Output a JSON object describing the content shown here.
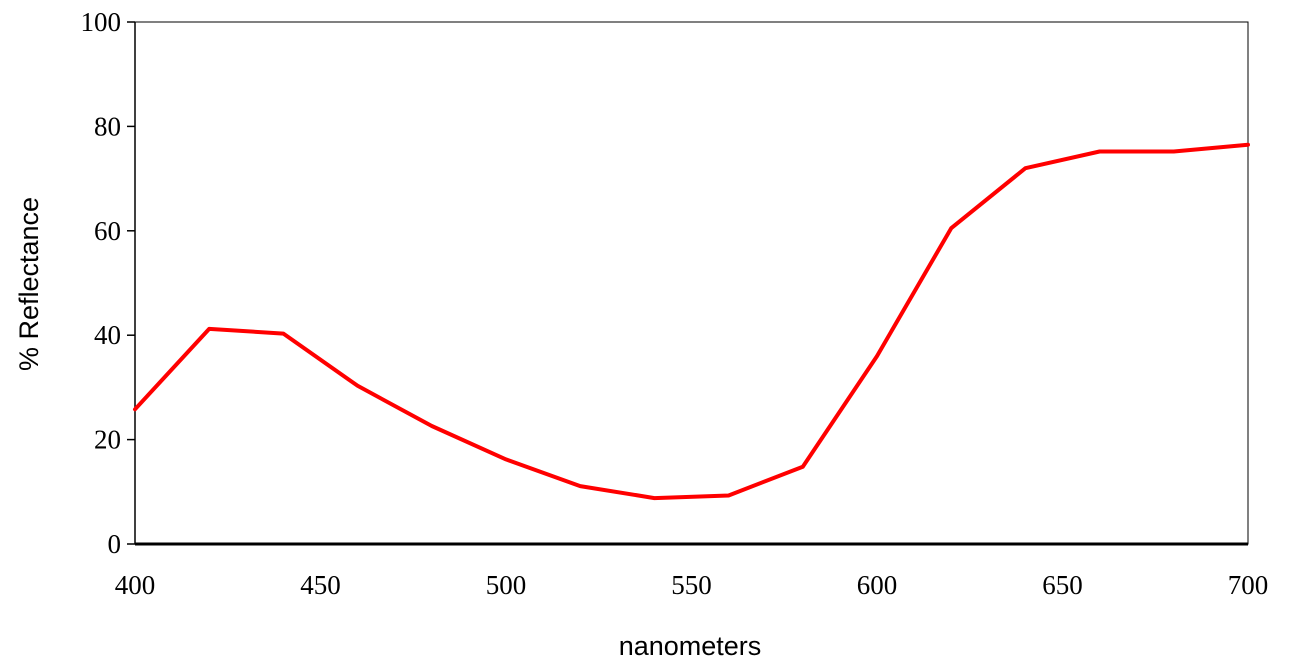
{
  "chart_data": {
    "type": "line",
    "title": "",
    "xlabel": "nanometers",
    "ylabel": "% Reflectance",
    "xlim": [
      400,
      700
    ],
    "ylim": [
      0,
      100
    ],
    "xticks": [
      400,
      450,
      500,
      550,
      600,
      650,
      700
    ],
    "yticks": [
      0,
      20,
      40,
      60,
      80,
      100
    ],
    "grid": false,
    "legend": "none",
    "series": [
      {
        "color": "#ff0000",
        "x": [
          400,
          420,
          440,
          460,
          480,
          500,
          520,
          540,
          560,
          580,
          600,
          620,
          640,
          660,
          680,
          700
        ],
        "y": [
          25.8,
          41.2,
          40.3,
          30.3,
          22.6,
          16.2,
          11.1,
          8.8,
          9.3,
          14.8,
          36.0,
          60.5,
          72.0,
          75.2,
          75.2,
          76.5
        ]
      }
    ]
  }
}
